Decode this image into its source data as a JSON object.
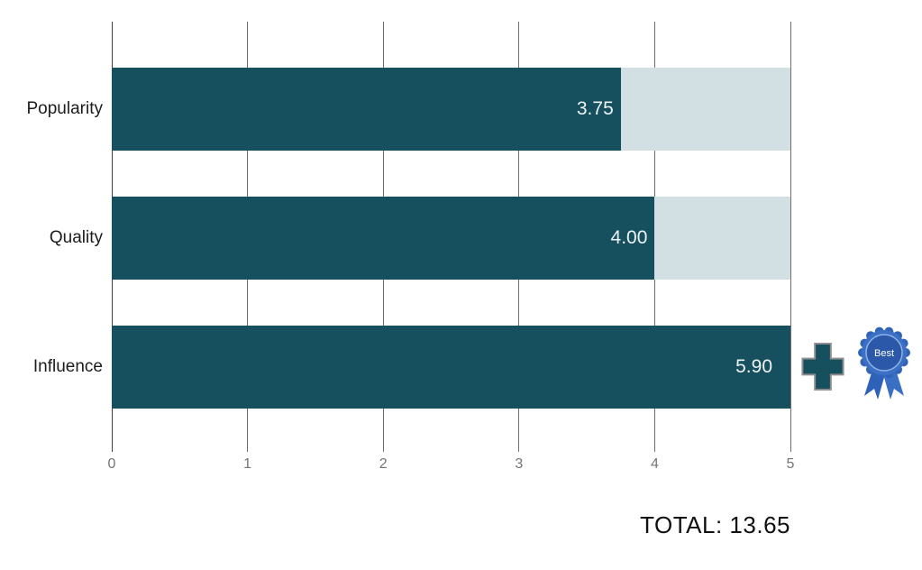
{
  "chart_data": {
    "type": "bar",
    "orientation": "horizontal",
    "categories": [
      "Popularity",
      "Quality",
      "Influence"
    ],
    "values": [
      3.75,
      4.0,
      5.9
    ],
    "value_labels": [
      "3.75",
      "4.00",
      "5.90"
    ],
    "xlim": [
      0,
      5
    ],
    "x_ticks": [
      0,
      1,
      2,
      3,
      4,
      5
    ],
    "grid": true,
    "legend_position": "none",
    "bar_color": "#16505F",
    "track_color": "#D2DFE3",
    "gridline_color": "#6F6F6F",
    "total_label": "TOTAL: 13.65"
  },
  "annotations": {
    "plus_icon": "plus-icon",
    "badge": {
      "text": "Best",
      "outer_color": "#3B70C4",
      "inner_color": "#2C58A9",
      "ribbon_color": "#2E62B8"
    }
  }
}
